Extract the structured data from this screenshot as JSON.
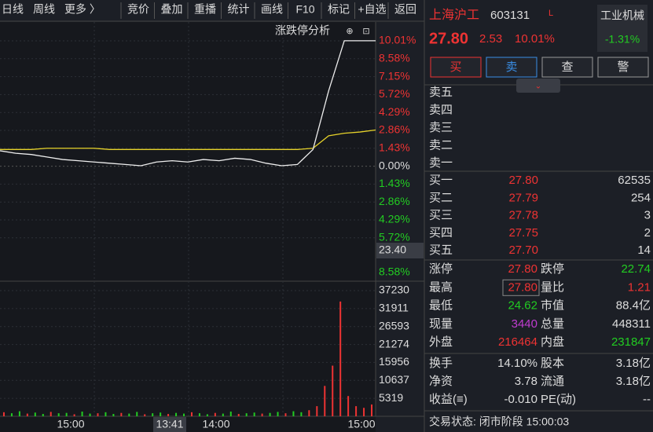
{
  "toolbar": {
    "left": [
      "日线",
      "周线",
      "更多 〉"
    ],
    "buttons": [
      "竞价",
      "叠加",
      "重播",
      "统计",
      "画线",
      "F10",
      "标记",
      "+自选",
      "返回"
    ]
  },
  "chart": {
    "title": "涨跌停分析",
    "price_axis": [
      "10.01%",
      "8.58%",
      "7.15%",
      "5.72%",
      "4.29%",
      "2.86%",
      "1.43%",
      "0.00%",
      "1.43%",
      "2.86%",
      "4.29%",
      "5.72%"
    ],
    "price_label": "23.40",
    "extra_label": "8.58%",
    "volume_axis": [
      37230,
      31911,
      26593,
      21274,
      15956,
      10637,
      5319
    ],
    "time_labels": [
      "15:00",
      "13:41",
      "14:00",
      "15:00"
    ],
    "price_pct": [
      1.2,
      1.0,
      0.9,
      0.7,
      0.5,
      0.4,
      0.3,
      0.2,
      0.1,
      0.0,
      0.3,
      0.4,
      0.3,
      0.5,
      0.4,
      0.6,
      0.5,
      0.2,
      0.0,
      0.1,
      1.3,
      6.0,
      10.01,
      10.01,
      10.01
    ],
    "avg_pct": [
      1.3,
      1.3,
      1.3,
      1.4,
      1.4,
      1.4,
      1.4,
      1.3,
      1.3,
      1.3,
      1.3,
      1.3,
      1.3,
      1.3,
      1.3,
      1.3,
      1.3,
      1.3,
      1.3,
      1.3,
      1.4,
      2.4,
      2.6,
      2.7,
      2.86
    ],
    "volume": [
      1200,
      900,
      1500,
      800,
      1100,
      700,
      1300,
      900,
      1000,
      600,
      1400,
      800,
      900,
      1200,
      700,
      1000,
      800,
      1300,
      600,
      900,
      1100,
      700,
      1000,
      800,
      1200,
      900,
      600,
      1000,
      800,
      1400,
      700,
      900,
      1100,
      800,
      1000,
      1300,
      900,
      1500,
      1200,
      1800,
      3000,
      9000,
      15000,
      34000,
      6000,
      3000,
      2500,
      3500
    ]
  },
  "quote": {
    "name": "上海沪工",
    "code": "603131",
    "flag": "L",
    "industry": "工业机械",
    "industry_change": "-1.31%",
    "price": "27.80",
    "change": "2.53",
    "change_pct": "10.01%"
  },
  "actions": [
    "买",
    "卖",
    "查",
    "警"
  ],
  "asks": [
    "卖五",
    "卖四",
    "卖三",
    "卖二",
    "卖一"
  ],
  "bids": [
    [
      "买一",
      "27.80",
      "62535"
    ],
    [
      "买二",
      "27.79",
      "254"
    ],
    [
      "买三",
      "27.78",
      "3"
    ],
    [
      "买四",
      "27.75",
      "2"
    ],
    [
      "买五",
      "27.70",
      "14"
    ]
  ],
  "stats": [
    [
      "涨停",
      "27.80",
      "跌停",
      "22.74"
    ],
    [
      "最高",
      "27.80",
      "量比",
      "1.21"
    ],
    [
      "最低",
      "24.62",
      "市值",
      "88.4亿"
    ],
    [
      "现量",
      "3440",
      "总量",
      "448311"
    ],
    [
      "外盘",
      "216464",
      "内盘",
      "231847"
    ]
  ],
  "fundamentals": [
    [
      "换手",
      "14.10%",
      "股本",
      "3.18亿"
    ],
    [
      "净资",
      "3.78",
      "流通",
      "3.18亿"
    ],
    [
      "收益(≡)",
      "-0.010",
      "PE(动)",
      "--"
    ]
  ],
  "status": "交易状态: 闭市阶段 15:00:03"
}
